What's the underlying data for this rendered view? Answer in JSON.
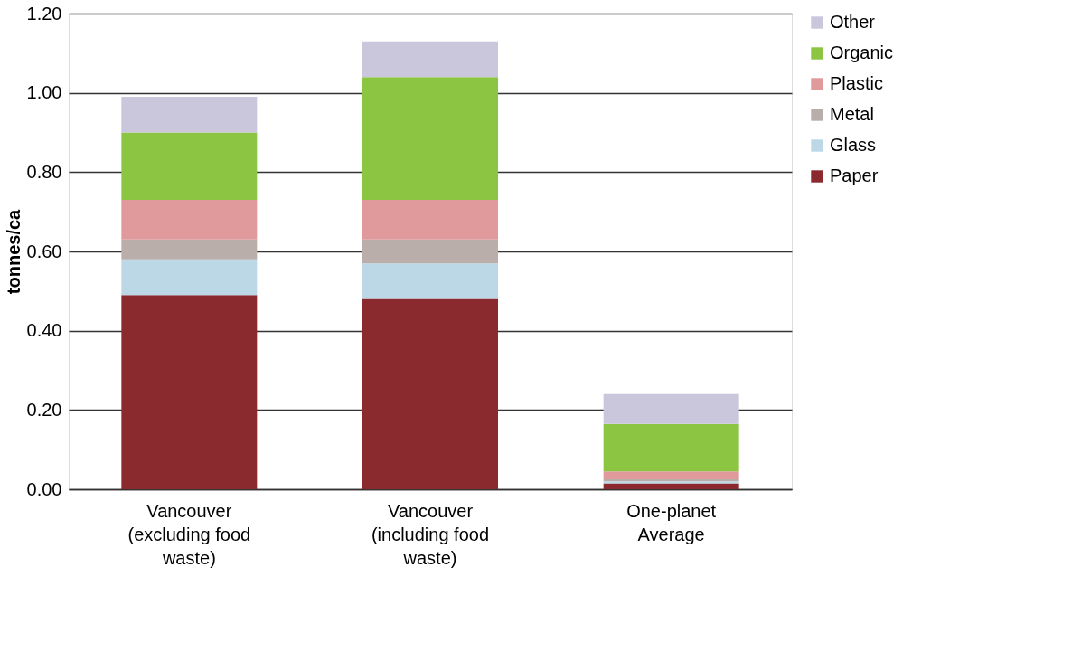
{
  "chart_data": {
    "type": "bar",
    "stacked": true,
    "ylabel": "tonnes/ca",
    "categories": [
      "Vancouver (excluding food waste)",
      "Vancouver (including food waste)",
      "One-planet Average"
    ],
    "series": [
      {
        "name": "Paper",
        "color": "#8b2a2e",
        "values": [
          0.49,
          0.48,
          0.015
        ]
      },
      {
        "name": "Glass",
        "color": "#bcd8e6",
        "values": [
          0.09,
          0.09,
          0.005
        ]
      },
      {
        "name": "Metal",
        "color": "#b9aeaa",
        "values": [
          0.05,
          0.06,
          0.005
        ]
      },
      {
        "name": "Plastic",
        "color": "#e09a9c",
        "values": [
          0.1,
          0.1,
          0.02
        ]
      },
      {
        "name": "Organic",
        "color": "#8cc541",
        "values": [
          0.17,
          0.31,
          0.12
        ]
      },
      {
        "name": "Other",
        "color": "#cac6dc",
        "values": [
          0.09,
          0.09,
          0.075
        ]
      }
    ],
    "ylim": [
      0,
      1.2
    ],
    "yticks": [
      {
        "value": 0,
        "label": "0.00"
      },
      {
        "value": 0.2,
        "label": "0.20"
      },
      {
        "value": 0.4,
        "label": "0.40"
      },
      {
        "value": 0.6,
        "label": "0.60"
      },
      {
        "value": 0.8,
        "label": "0.80"
      },
      {
        "value": 1.0,
        "label": "1.00"
      },
      {
        "value": 1.2,
        "label": "1.20"
      }
    ],
    "grid": "y",
    "legend": "right"
  }
}
